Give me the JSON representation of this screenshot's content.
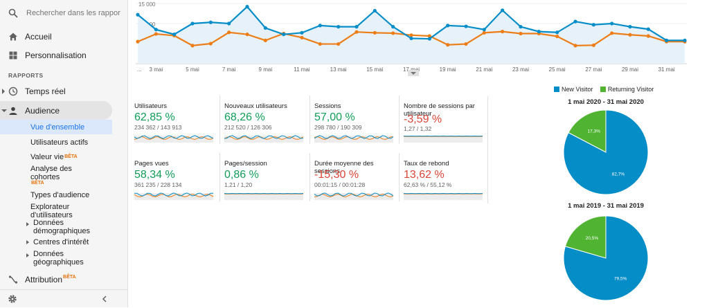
{
  "search": {
    "placeholder": "Rechercher dans les rappor"
  },
  "nav": {
    "home": "Accueil",
    "custom": "Personnalisation",
    "section": "RAPPORTS",
    "realtime": "Temps réel",
    "audience": "Audience",
    "audience_items": {
      "overview": "Vue d'ensemble",
      "active_users": "Utilisateurs actifs",
      "lifetime_value": "Valeur vie",
      "cohort_1": "Analyse des",
      "cohort_2": "cohortes",
      "audience_types": "Types d'audience",
      "explorer_1": "Explorateur",
      "explorer_2": "d'utilisateurs",
      "demo_1": "Données",
      "demo_2": "démographiques",
      "interests": "Centres d'intérêt",
      "geo_1": "Données",
      "geo_2": "géographiques"
    },
    "attribution": "Attribution",
    "beta": "BÊTA"
  },
  "top_chart": {
    "y_ticks": [
      "15 000",
      "10 000",
      "5 000"
    ],
    "x_labels": [
      "...",
      "3 mai",
      "5 mai",
      "7 mai",
      "9 mai",
      "11 mai",
      "13 mai",
      "15 mai",
      "17 mai",
      "19 mai",
      "21 mai",
      "23 mai",
      "25 mai",
      "27 mai",
      "29 mai",
      "31 mai"
    ],
    "color_current": "#058dc7",
    "color_previous": "#ed7e17"
  },
  "metrics": [
    {
      "title": "Utilisateurs",
      "value": "62,85 %",
      "sub": "234 362 / 143 913",
      "trend": "pos"
    },
    {
      "title": "Nouveaux utilisateurs",
      "value": "68,26 %",
      "sub": "212 520 / 126 306",
      "trend": "pos"
    },
    {
      "title": "Sessions",
      "value": "57,00 %",
      "sub": "298 780 / 190 309",
      "trend": "pos"
    },
    {
      "title": "Nombre de sessions par utilisateur",
      "value": "-3,59 %",
      "sub": "1,27 / 1,32",
      "trend": "neg"
    },
    {
      "title": "Pages vues",
      "value": "58,34 %",
      "sub": "361 235 / 228 134",
      "trend": "pos"
    },
    {
      "title": "Pages/session",
      "value": "0,86 %",
      "sub": "1,21 / 1,20",
      "trend": "pos"
    },
    {
      "title": "Durée moyenne des sessions",
      "value": "-15,30 %",
      "sub": "00:01:15 / 00:01:28",
      "trend": "neg"
    },
    {
      "title": "Taux de rebond",
      "value": "13,62 %",
      "sub": "62,63 % / 55,12 %",
      "trend": "neg"
    }
  ],
  "legend": {
    "new": "New Visitor",
    "returning": "Returning Visitor",
    "new_color": "#058dc7",
    "returning_color": "#50b432"
  },
  "pies": [
    {
      "title": "1 mai 2020 - 31 mai 2020",
      "new_pct": 82.7,
      "new_label": "82,7%",
      "ret_label": "17,3%"
    },
    {
      "title": "1 mai 2019 - 31 mai 2019",
      "new_pct": 79.5,
      "new_label": "79,5%",
      "ret_label": "20,5%"
    }
  ]
}
